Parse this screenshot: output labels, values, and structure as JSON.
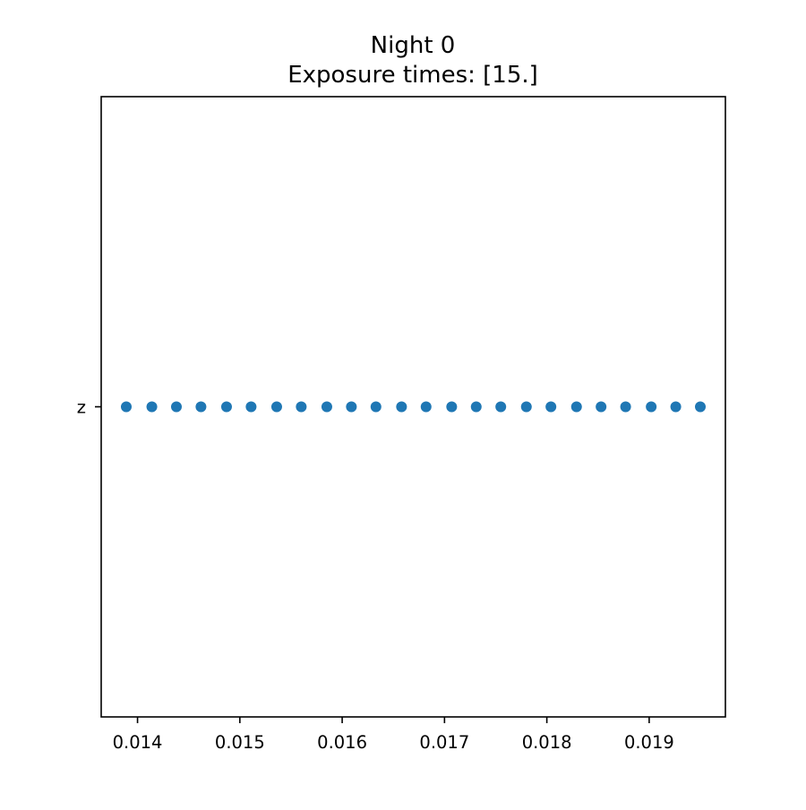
{
  "chart_data": {
    "type": "scatter",
    "title": "Night 0",
    "subtitle": "Exposure times: [15.]",
    "xlabel": "",
    "ylabel": "",
    "categories": [
      "z"
    ],
    "x_ticks": [
      0.014,
      0.015,
      0.016,
      0.017,
      0.018,
      0.019
    ],
    "x_tick_labels": [
      "0.014",
      "0.015",
      "0.016",
      "0.017",
      "0.018",
      "0.019"
    ],
    "xlim": [
      0.013645,
      0.019745
    ],
    "grid": false,
    "series": [
      {
        "name": "z",
        "color": "#1f77b4",
        "x": [
          0.01389,
          0.01414,
          0.01438,
          0.01462,
          0.01487,
          0.01511,
          0.01536,
          0.0156,
          0.01585,
          0.01609,
          0.01633,
          0.01658,
          0.01682,
          0.01707,
          0.01731,
          0.01755,
          0.0178,
          0.01804,
          0.01829,
          0.01853,
          0.01877,
          0.01902,
          0.01926,
          0.0195
        ],
        "y": [
          "z",
          "z",
          "z",
          "z",
          "z",
          "z",
          "z",
          "z",
          "z",
          "z",
          "z",
          "z",
          "z",
          "z",
          "z",
          "z",
          "z",
          "z",
          "z",
          "z",
          "z",
          "z",
          "z",
          "z"
        ]
      }
    ]
  }
}
